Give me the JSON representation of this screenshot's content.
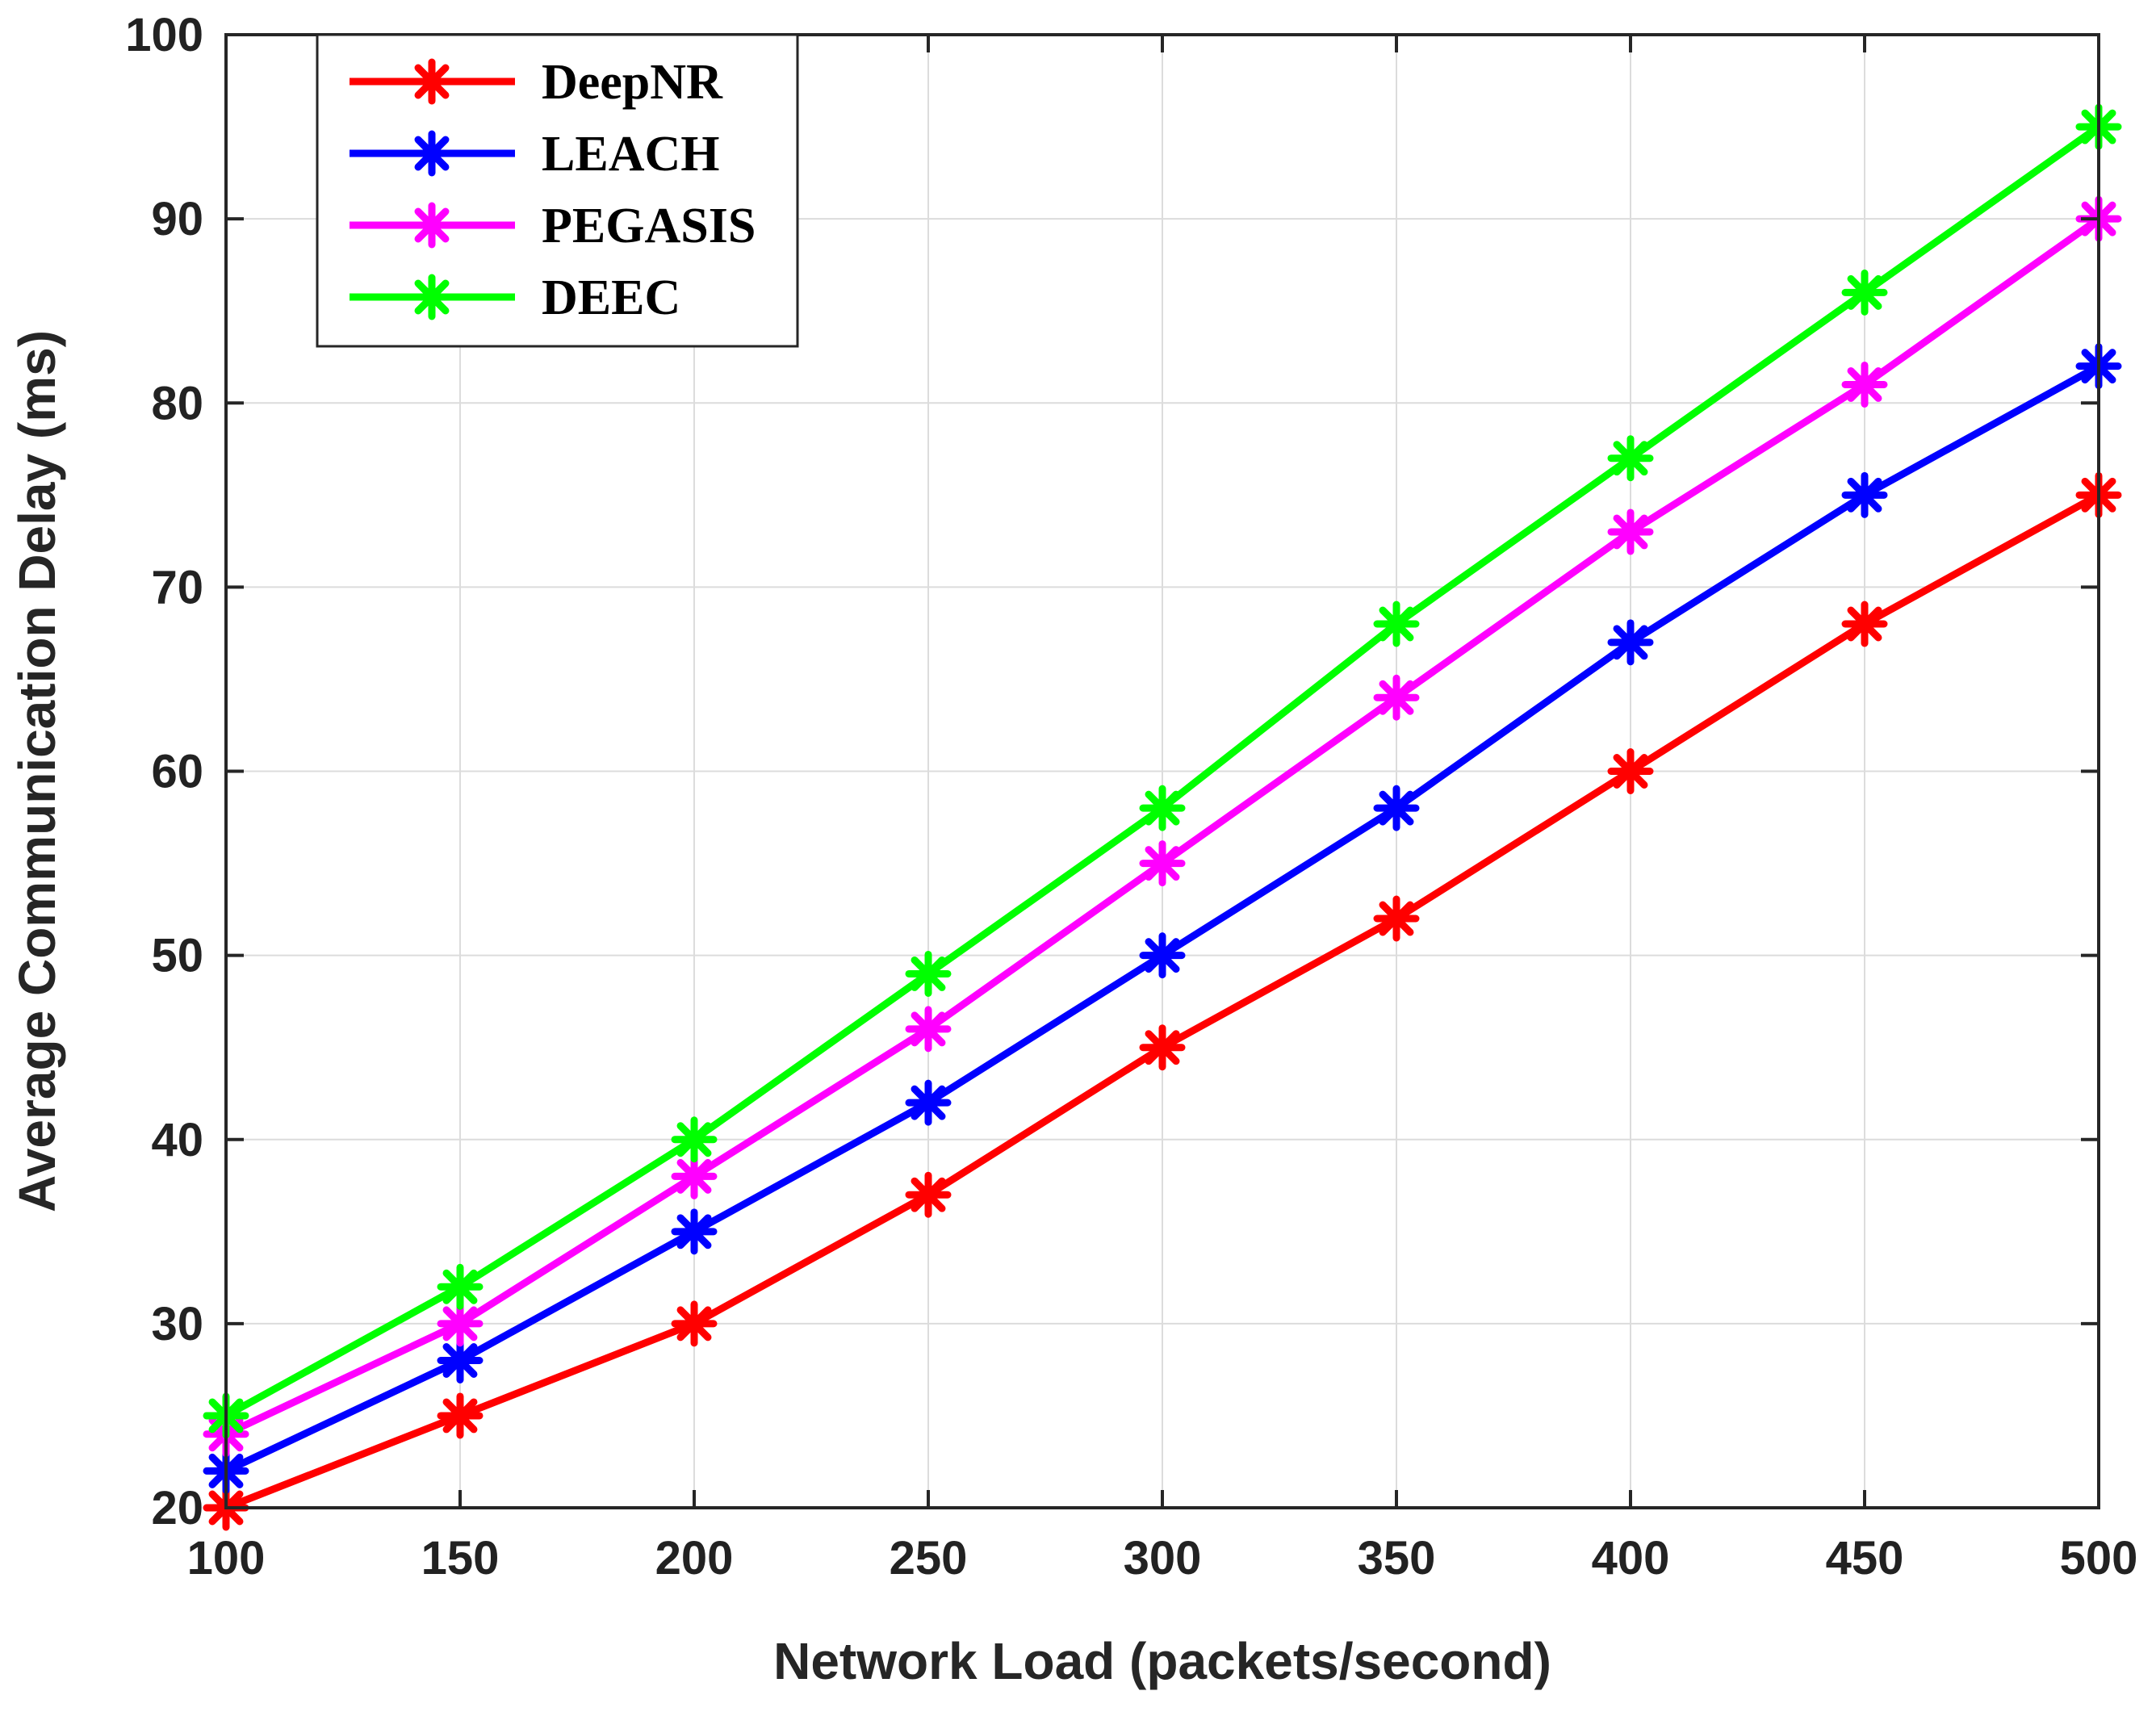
{
  "chart_data": {
    "type": "line",
    "title": "",
    "xlabel": "Network Load (packets/second)",
    "ylabel": "Average Communication Delay (ms)",
    "x": [
      100,
      150,
      200,
      250,
      300,
      350,
      400,
      450,
      500
    ],
    "xlim": [
      100,
      500
    ],
    "ylim": [
      20,
      100
    ],
    "xticks": [
      100,
      150,
      200,
      250,
      300,
      350,
      400,
      450,
      500
    ],
    "yticks": [
      20,
      30,
      40,
      50,
      60,
      70,
      80,
      90,
      100
    ],
    "grid": true,
    "legend_position": "top-left",
    "marker": "asterisk",
    "series": [
      {
        "name": "DeepNR",
        "color": "#ff0000",
        "values": [
          20,
          25,
          30,
          37,
          45,
          52,
          60,
          68,
          75
        ]
      },
      {
        "name": "LEACH",
        "color": "#0000ff",
        "values": [
          22,
          28,
          35,
          42,
          50,
          58,
          67,
          75,
          82
        ]
      },
      {
        "name": "PEGASIS",
        "color": "#ff00ff",
        "values": [
          24,
          30,
          38,
          46,
          55,
          64,
          73,
          81,
          90
        ]
      },
      {
        "name": "DEEC",
        "color": "#00ff00",
        "values": [
          25,
          32,
          40,
          49,
          58,
          68,
          77,
          86,
          95
        ]
      }
    ]
  }
}
